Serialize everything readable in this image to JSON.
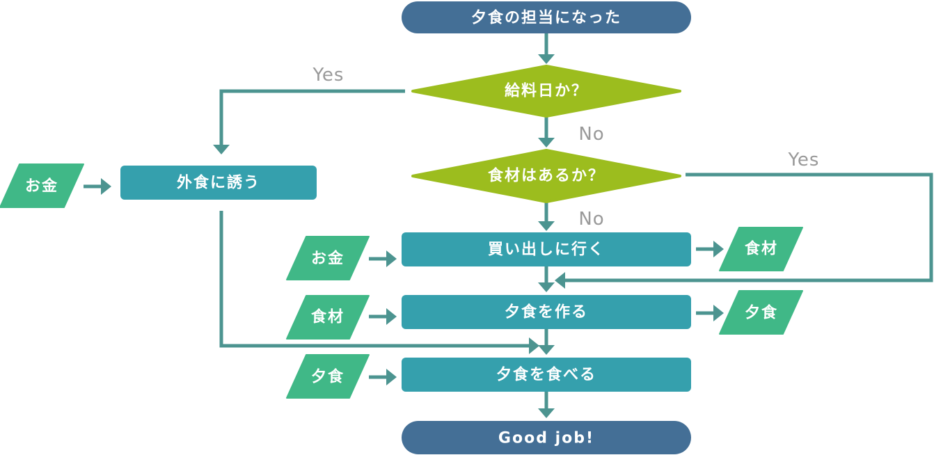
{
  "colors": {
    "terminal": "#446f96",
    "decision": "#9cbd1e",
    "process": "#35a0ad",
    "data": "#40b887",
    "arrow": "#4c9490",
    "label": "#999999"
  },
  "nodes": {
    "start": "夕食の担当になった",
    "payday": "給料日か？",
    "ingredients_q": "食材はあるか？",
    "eat_out": "外食に誘う",
    "shopping": "買い出しに行く",
    "cook": "夕食を作る",
    "eat": "夕食を食べる",
    "end": "Good job!"
  },
  "data_items": {
    "money_eat_out": "お金",
    "money_shopping": "お金",
    "ingredients_in": "食材",
    "dinner_in": "夕食",
    "ingredients_out": "食材",
    "dinner_out": "夕食"
  },
  "labels": {
    "payday_yes": "Yes",
    "payday_no": "No",
    "ingredients_yes": "Yes",
    "ingredients_no": "No"
  }
}
